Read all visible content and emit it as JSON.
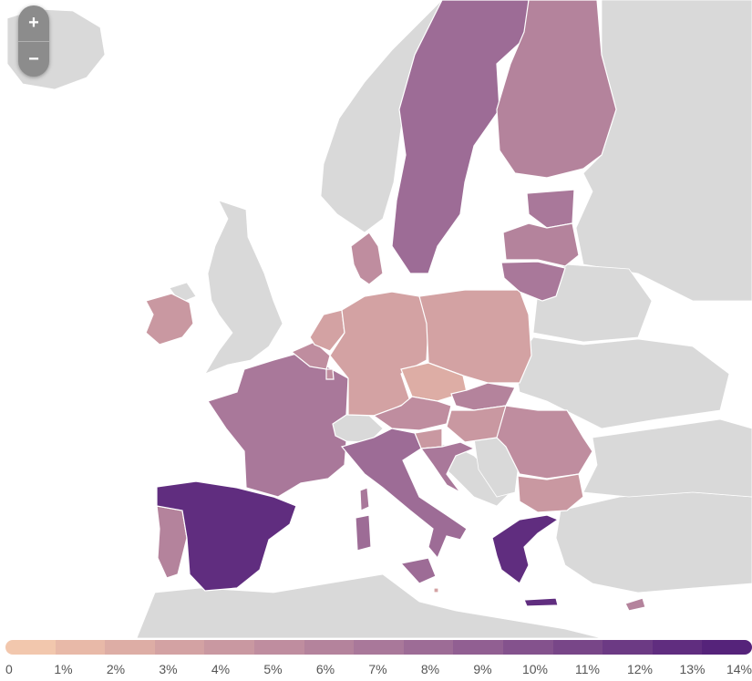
{
  "zoom": {
    "in_label": "+",
    "out_label": "−"
  },
  "legend": {
    "labels": [
      "0",
      "1%",
      "2%",
      "3%",
      "4%",
      "5%",
      "6%",
      "7%",
      "8%",
      "9%",
      "10%",
      "11%",
      "12%",
      "13%",
      "14%"
    ],
    "colors": [
      "#f2c7ad",
      "#e8b9a8",
      "#ddada5",
      "#d3a2a3",
      "#c998a1",
      "#bf8d9f",
      "#b4839c",
      "#a9789a",
      "#9d6c96",
      "#915f92",
      "#84528d",
      "#784688",
      "#6c3a84",
      "#602d7f",
      "#55237a"
    ]
  },
  "countries": [
    {
      "id": "spain",
      "value_pct": 13.5
    },
    {
      "id": "greece",
      "value_pct": 13.5
    },
    {
      "id": "portugal",
      "value_pct": 6.5
    },
    {
      "id": "france",
      "value_pct": 7.0
    },
    {
      "id": "italy",
      "value_pct": 8.5
    },
    {
      "id": "sweden",
      "value_pct": 8.0
    },
    {
      "id": "finland",
      "value_pct": 6.5
    },
    {
      "id": "estonia",
      "value_pct": 7.5
    },
    {
      "id": "latvia",
      "value_pct": 6.5
    },
    {
      "id": "lithuania",
      "value_pct": 7.5
    },
    {
      "id": "germany",
      "value_pct": 3.0
    },
    {
      "id": "poland",
      "value_pct": 3.0
    },
    {
      "id": "czechia",
      "value_pct": 2.5
    },
    {
      "id": "slovakia",
      "value_pct": 6.5
    },
    {
      "id": "austria",
      "value_pct": 5.5
    },
    {
      "id": "hungary",
      "value_pct": 4.0
    },
    {
      "id": "slovenia",
      "value_pct": 4.0
    },
    {
      "id": "croatia",
      "value_pct": 7.0
    },
    {
      "id": "romania",
      "value_pct": 5.5
    },
    {
      "id": "bulgaria",
      "value_pct": 4.0
    },
    {
      "id": "ireland",
      "value_pct": 4.5
    },
    {
      "id": "netherlands",
      "value_pct": 3.5
    },
    {
      "id": "belgium",
      "value_pct": 5.5
    },
    {
      "id": "luxembourg",
      "value_pct": 5.5
    },
    {
      "id": "denmark",
      "value_pct": 5.0
    },
    {
      "id": "cyprus",
      "value_pct": 6.0
    },
    {
      "id": "malta",
      "value_pct": 3.5
    }
  ]
}
